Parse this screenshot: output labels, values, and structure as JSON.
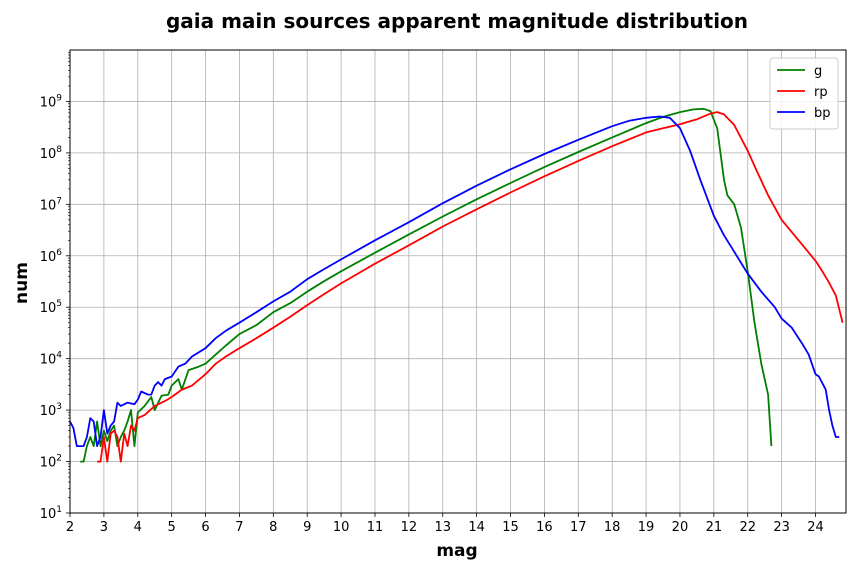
{
  "chart_data": {
    "type": "line",
    "title": "gaia main sources apparent magnitude distribution",
    "xlabel": "mag",
    "ylabel": "num",
    "xlim": [
      2,
      24.9
    ],
    "ylim": [
      10,
      10000000000
    ],
    "yscale": "log",
    "grid": true,
    "legend_position": "top-right",
    "x_ticks": [
      "2",
      "3",
      "4",
      "5",
      "6",
      "7",
      "8",
      "9",
      "10",
      "11",
      "12",
      "13",
      "14",
      "15",
      "16",
      "17",
      "18",
      "19",
      "20",
      "21",
      "22",
      "23",
      "24"
    ],
    "y_ticks": [
      {
        "value": 10,
        "base": "10",
        "exp": "1"
      },
      {
        "value": 100,
        "base": "10",
        "exp": "2"
      },
      {
        "value": 1000,
        "base": "10",
        "exp": "3"
      },
      {
        "value": 10000,
        "base": "10",
        "exp": "4"
      },
      {
        "value": 100000,
        "base": "10",
        "exp": "5"
      },
      {
        "value": 1000000,
        "base": "10",
        "exp": "6"
      },
      {
        "value": 10000000,
        "base": "10",
        "exp": "7"
      },
      {
        "value": 100000000,
        "base": "10",
        "exp": "8"
      },
      {
        "value": 1000000000,
        "base": "10",
        "exp": "9"
      }
    ],
    "series": [
      {
        "name": "g",
        "color": "#008000",
        "points": [
          [
            2.3,
            100
          ],
          [
            2.4,
            100
          ],
          [
            2.5,
            200
          ],
          [
            2.6,
            300
          ],
          [
            2.7,
            200
          ],
          [
            2.8,
            600
          ],
          [
            2.9,
            200
          ],
          [
            3.0,
            400
          ],
          [
            3.1,
            250
          ],
          [
            3.2,
            400
          ],
          [
            3.3,
            500
          ],
          [
            3.4,
            200
          ],
          [
            3.5,
            300
          ],
          [
            3.6,
            400
          ],
          [
            3.7,
            600
          ],
          [
            3.8,
            1000
          ],
          [
            3.9,
            200
          ],
          [
            4.0,
            900
          ],
          [
            4.2,
            1200
          ],
          [
            4.4,
            1800
          ],
          [
            4.5,
            1000
          ],
          [
            4.7,
            1900
          ],
          [
            4.9,
            2000
          ],
          [
            5.0,
            3000
          ],
          [
            5.2,
            4000
          ],
          [
            5.3,
            2500
          ],
          [
            5.5,
            6000
          ],
          [
            5.8,
            7000
          ],
          [
            6.0,
            8000
          ],
          [
            6.3,
            12000
          ],
          [
            6.6,
            18000
          ],
          [
            7.0,
            30000
          ],
          [
            7.5,
            45000
          ],
          [
            8.0,
            80000
          ],
          [
            8.5,
            120000
          ],
          [
            9.0,
            200000
          ],
          [
            9.5,
            320000
          ],
          [
            10.0,
            500000
          ],
          [
            11.0,
            1150000
          ],
          [
            12.0,
            2600000
          ],
          [
            13.0,
            5800000
          ],
          [
            14.0,
            12500000
          ],
          [
            15.0,
            26000000
          ],
          [
            16.0,
            53000000
          ],
          [
            17.0,
            104000000
          ],
          [
            18.0,
            200000000
          ],
          [
            19.0,
            380000000
          ],
          [
            19.5,
            500000000
          ],
          [
            20.0,
            620000000
          ],
          [
            20.4,
            700000000
          ],
          [
            20.7,
            720000000
          ],
          [
            20.9,
            650000000
          ],
          [
            21.1,
            300000000
          ],
          [
            21.3,
            30000000
          ],
          [
            21.4,
            15000000
          ],
          [
            21.6,
            10000000
          ],
          [
            21.8,
            3500000
          ],
          [
            22.0,
            500000
          ],
          [
            22.2,
            50000
          ],
          [
            22.4,
            8000
          ],
          [
            22.6,
            2000
          ],
          [
            22.7,
            200
          ]
        ]
      },
      {
        "name": "rp",
        "color": "#ff0000",
        "points": [
          [
            2.8,
            100
          ],
          [
            2.9,
            100
          ],
          [
            3.0,
            300
          ],
          [
            3.1,
            100
          ],
          [
            3.2,
            350
          ],
          [
            3.3,
            400
          ],
          [
            3.4,
            300
          ],
          [
            3.5,
            100
          ],
          [
            3.6,
            350
          ],
          [
            3.7,
            200
          ],
          [
            3.8,
            500
          ],
          [
            3.9,
            400
          ],
          [
            4.0,
            700
          ],
          [
            4.2,
            800
          ],
          [
            4.5,
            1200
          ],
          [
            4.8,
            1500
          ],
          [
            5.0,
            1800
          ],
          [
            5.3,
            2500
          ],
          [
            5.6,
            3000
          ],
          [
            6.0,
            5000
          ],
          [
            6.3,
            8000
          ],
          [
            6.6,
            11000
          ],
          [
            7.0,
            16000
          ],
          [
            7.5,
            25000
          ],
          [
            8.0,
            40000
          ],
          [
            8.5,
            65000
          ],
          [
            9.0,
            110000
          ],
          [
            9.5,
            180000
          ],
          [
            10.0,
            290000
          ],
          [
            11.0,
            700000
          ],
          [
            12.0,
            1600000
          ],
          [
            13.0,
            3700000
          ],
          [
            14.0,
            8000000
          ],
          [
            15.0,
            17000000
          ],
          [
            16.0,
            35000000
          ],
          [
            17.0,
            70000000
          ],
          [
            18.0,
            135000000
          ],
          [
            19.0,
            250000000
          ],
          [
            19.5,
            300000000
          ],
          [
            20.0,
            360000000
          ],
          [
            20.5,
            450000000
          ],
          [
            20.9,
            580000000
          ],
          [
            21.1,
            620000000
          ],
          [
            21.3,
            560000000
          ],
          [
            21.6,
            350000000
          ],
          [
            22.0,
            110000000
          ],
          [
            22.3,
            40000000
          ],
          [
            22.6,
            15000000
          ],
          [
            23.0,
            5000000
          ],
          [
            23.5,
            2000000
          ],
          [
            24.0,
            800000
          ],
          [
            24.2,
            500000
          ],
          [
            24.4,
            300000
          ],
          [
            24.6,
            170000
          ],
          [
            24.8,
            50000
          ]
        ]
      },
      {
        "name": "bp",
        "color": "#0000ff",
        "points": [
          [
            2.0,
            600
          ],
          [
            2.1,
            450
          ],
          [
            2.2,
            200
          ],
          [
            2.3,
            200
          ],
          [
            2.4,
            200
          ],
          [
            2.5,
            300
          ],
          [
            2.6,
            700
          ],
          [
            2.7,
            600
          ],
          [
            2.8,
            200
          ],
          [
            2.9,
            300
          ],
          [
            3.0,
            1000
          ],
          [
            3.1,
            350
          ],
          [
            3.2,
            500
          ],
          [
            3.3,
            600
          ],
          [
            3.4,
            1400
          ],
          [
            3.5,
            1200
          ],
          [
            3.7,
            1400
          ],
          [
            3.9,
            1300
          ],
          [
            4.0,
            1600
          ],
          [
            4.1,
            2300
          ],
          [
            4.3,
            2000
          ],
          [
            4.4,
            2000
          ],
          [
            4.5,
            3000
          ],
          [
            4.6,
            3500
          ],
          [
            4.7,
            3000
          ],
          [
            4.8,
            4000
          ],
          [
            5.0,
            4500
          ],
          [
            5.2,
            7000
          ],
          [
            5.4,
            8000
          ],
          [
            5.6,
            11000
          ],
          [
            6.0,
            16000
          ],
          [
            6.3,
            25000
          ],
          [
            6.6,
            35000
          ],
          [
            7.0,
            50000
          ],
          [
            7.5,
            80000
          ],
          [
            8.0,
            130000
          ],
          [
            8.5,
            200000
          ],
          [
            9.0,
            350000
          ],
          [
            9.5,
            550000
          ],
          [
            10.0,
            850000
          ],
          [
            11.0,
            2000000
          ],
          [
            12.0,
            4500000
          ],
          [
            13.0,
            10500000
          ],
          [
            14.0,
            23000000
          ],
          [
            15.0,
            48000000
          ],
          [
            16.0,
            95000000
          ],
          [
            17.0,
            180000000
          ],
          [
            18.0,
            330000000
          ],
          [
            18.5,
            420000000
          ],
          [
            19.0,
            480000000
          ],
          [
            19.4,
            510000000
          ],
          [
            19.7,
            480000000
          ],
          [
            20.0,
            300000000
          ],
          [
            20.3,
            110000000
          ],
          [
            20.6,
            30000000
          ],
          [
            21.0,
            6000000
          ],
          [
            21.3,
            2500000
          ],
          [
            21.6,
            1200000
          ],
          [
            22.0,
            450000
          ],
          [
            22.4,
            200000
          ],
          [
            22.8,
            100000
          ],
          [
            23.0,
            60000
          ],
          [
            23.3,
            40000
          ],
          [
            23.6,
            20000
          ],
          [
            23.8,
            12000
          ],
          [
            24.0,
            5000
          ],
          [
            24.1,
            4500
          ],
          [
            24.3,
            2500
          ],
          [
            24.4,
            1000
          ],
          [
            24.5,
            500
          ],
          [
            24.6,
            300
          ],
          [
            24.7,
            300
          ]
        ]
      }
    ]
  }
}
